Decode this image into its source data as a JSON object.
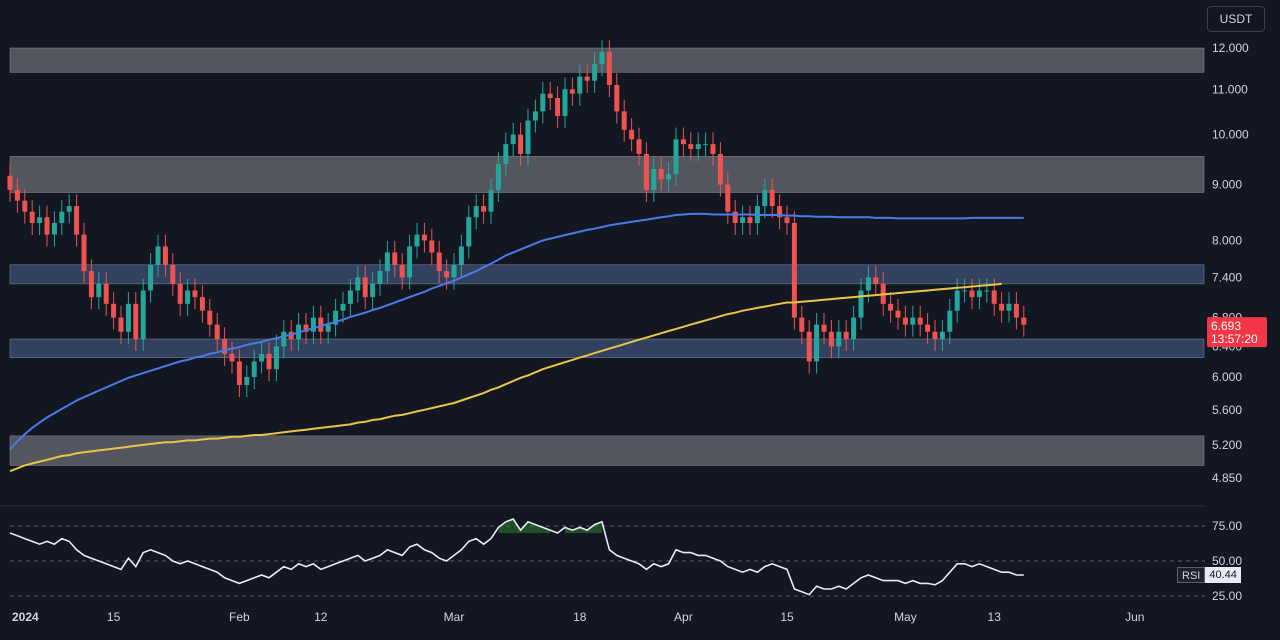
{
  "unit": "USDT",
  "chart_data": [
    {
      "type": "candlestick",
      "y_scale": "log",
      "ylim": [
        4.6,
        13.0
      ],
      "y_ticks": [
        "12.000",
        "11.000",
        "10.000",
        "9.000",
        "8.000",
        "7.400",
        "6.800",
        "6.400",
        "6.000",
        "5.600",
        "5.200",
        "4.850"
      ],
      "x_ticks": [
        {
          "label": "2024",
          "day": 0,
          "bold": true
        },
        {
          "label": "15",
          "day": 14
        },
        {
          "label": "Feb",
          "day": 31
        },
        {
          "label": "12",
          "day": 42
        },
        {
          "label": "Mar",
          "day": 60
        },
        {
          "label": "18",
          "day": 77
        },
        {
          "label": "Apr",
          "day": 91
        },
        {
          "label": "15",
          "day": 105
        },
        {
          "label": "May",
          "day": 121
        },
        {
          "label": "13",
          "day": 133
        },
        {
          "label": "Jun",
          "day": 152
        }
      ],
      "zones": [
        {
          "low": 11.4,
          "high": 12.0,
          "color": "#5f6168"
        },
        {
          "low": 8.85,
          "high": 9.55,
          "color": "#5f6168"
        },
        {
          "low": 7.3,
          "high": 7.6,
          "color": "#39496b"
        },
        {
          "low": 6.25,
          "high": 6.5,
          "color": "#39496b"
        },
        {
          "low": 4.98,
          "high": 5.3,
          "color": "#5f6168"
        }
      ],
      "closes": [
        8.9,
        8.7,
        8.5,
        8.3,
        8.4,
        8.1,
        8.3,
        8.5,
        8.6,
        8.1,
        7.5,
        7.1,
        7.3,
        7.0,
        6.8,
        6.6,
        7.0,
        6.5,
        7.2,
        7.6,
        7.9,
        7.6,
        7.3,
        7.0,
        7.2,
        7.1,
        6.9,
        6.7,
        6.5,
        6.3,
        6.2,
        5.9,
        6.0,
        6.2,
        6.3,
        6.1,
        6.4,
        6.6,
        6.5,
        6.7,
        6.6,
        6.8,
        6.6,
        6.7,
        6.9,
        7.0,
        7.2,
        7.4,
        7.1,
        7.3,
        7.5,
        7.8,
        7.6,
        7.4,
        7.9,
        8.1,
        8.0,
        7.8,
        7.5,
        7.4,
        7.6,
        7.9,
        8.4,
        8.6,
        8.5,
        8.9,
        9.4,
        9.8,
        10.0,
        9.6,
        10.3,
        10.5,
        10.9,
        10.8,
        10.4,
        11.0,
        10.9,
        11.3,
        11.2,
        11.6,
        11.9,
        11.1,
        10.5,
        10.1,
        9.9,
        9.6,
        8.9,
        9.3,
        9.1,
        9.2,
        9.9,
        9.8,
        9.7,
        9.8,
        9.8,
        9.6,
        9.0,
        8.5,
        8.3,
        8.4,
        8.3,
        8.6,
        8.9,
        8.6,
        8.4,
        8.3,
        6.8,
        6.6,
        6.2,
        6.7,
        6.6,
        6.4,
        6.6,
        6.5,
        6.8,
        7.2,
        7.4,
        7.3,
        7.0,
        6.9,
        6.8,
        6.7,
        6.8,
        6.7,
        6.6,
        6.5,
        6.6,
        6.9,
        7.2,
        7.2,
        7.1,
        7.2,
        7.2,
        7.0,
        6.9,
        7.0,
        6.8,
        6.7
      ],
      "price_badge": {
        "value": "6.693",
        "countdown": "13:57:20",
        "color": "#f23645"
      },
      "series": [
        {
          "name": "",
          "color": "#4a7be8",
          "values": [
            5.15,
            5.24,
            5.32,
            5.39,
            5.45,
            5.51,
            5.56,
            5.61,
            5.66,
            5.71,
            5.75,
            5.79,
            5.83,
            5.87,
            5.91,
            5.95,
            5.99,
            6.02,
            6.05,
            6.08,
            6.11,
            6.14,
            6.17,
            6.2,
            6.22,
            6.25,
            6.27,
            6.3,
            6.32,
            6.35,
            6.37,
            6.39,
            6.42,
            6.44,
            6.46,
            6.49,
            6.51,
            6.54,
            6.56,
            6.59,
            6.62,
            6.65,
            6.68,
            6.71,
            6.74,
            6.77,
            6.81,
            6.84,
            6.87,
            6.91,
            6.94,
            6.98,
            7.02,
            7.06,
            7.1,
            7.14,
            7.18,
            7.23,
            7.27,
            7.31,
            7.35,
            7.4,
            7.45,
            7.5,
            7.56,
            7.62,
            7.68,
            7.75,
            7.8,
            7.85,
            7.9,
            7.95,
            8.0,
            8.03,
            8.06,
            8.09,
            8.12,
            8.15,
            8.18,
            8.2,
            8.23,
            8.26,
            8.28,
            8.3,
            8.32,
            8.34,
            8.36,
            8.38,
            8.4,
            8.42,
            8.44,
            8.45,
            8.46,
            8.46,
            8.46,
            8.45,
            8.45,
            8.45,
            8.45,
            8.45,
            8.45,
            8.44,
            8.44,
            8.44,
            8.44,
            8.43,
            8.43,
            8.42,
            8.42,
            8.41,
            8.41,
            8.41,
            8.4,
            8.4,
            8.4,
            8.4,
            8.4,
            8.39,
            8.39,
            8.39,
            8.38,
            8.38,
            8.38,
            8.38,
            8.38,
            8.38,
            8.38,
            8.38,
            8.38,
            8.38,
            8.39,
            8.39,
            8.39,
            8.39,
            8.39,
            8.39,
            8.39,
            8.39
          ]
        },
        {
          "name": "",
          "color": "#e8c547",
          "values": [
            4.92,
            4.95,
            4.98,
            5.0,
            5.02,
            5.04,
            5.06,
            5.08,
            5.09,
            5.11,
            5.12,
            5.13,
            5.14,
            5.15,
            5.16,
            5.17,
            5.18,
            5.19,
            5.2,
            5.21,
            5.22,
            5.23,
            5.23,
            5.24,
            5.25,
            5.25,
            5.26,
            5.27,
            5.27,
            5.28,
            5.29,
            5.29,
            5.3,
            5.31,
            5.31,
            5.32,
            5.33,
            5.34,
            5.35,
            5.36,
            5.37,
            5.38,
            5.39,
            5.4,
            5.41,
            5.42,
            5.43,
            5.45,
            5.46,
            5.48,
            5.49,
            5.51,
            5.53,
            5.54,
            5.56,
            5.58,
            5.6,
            5.62,
            5.64,
            5.66,
            5.68,
            5.71,
            5.74,
            5.77,
            5.8,
            5.84,
            5.87,
            5.91,
            5.95,
            5.99,
            6.02,
            6.06,
            6.1,
            6.13,
            6.16,
            6.19,
            6.22,
            6.25,
            6.28,
            6.31,
            6.34,
            6.37,
            6.4,
            6.43,
            6.46,
            6.49,
            6.52,
            6.55,
            6.58,
            6.61,
            6.64,
            6.67,
            6.7,
            6.73,
            6.76,
            6.79,
            6.82,
            6.85,
            6.87,
            6.9,
            6.92,
            6.94,
            6.96,
            6.98,
            7.0,
            7.02,
            7.02,
            7.03,
            7.04,
            7.05,
            7.06,
            7.07,
            7.08,
            7.09,
            7.1,
            7.11,
            7.12,
            7.13,
            7.14,
            7.15,
            7.16,
            7.17,
            7.18,
            7.19,
            7.2,
            7.21,
            7.22,
            7.23,
            7.24,
            7.25,
            7.26,
            7.27,
            7.28,
            7.29,
            7.3
          ]
        }
      ]
    },
    {
      "type": "line",
      "name": "RSI",
      "ylim": [
        20,
        85
      ],
      "y_ticks": [
        "75.00",
        "50.00",
        "25.00"
      ],
      "guides": [
        75,
        50,
        25
      ],
      "overbought": 70,
      "current": "40.44",
      "values": [
        70,
        68,
        66,
        64,
        62,
        64,
        62,
        66,
        64,
        58,
        54,
        52,
        50,
        48,
        46,
        44,
        52,
        46,
        56,
        58,
        56,
        54,
        50,
        48,
        50,
        48,
        46,
        44,
        42,
        38,
        36,
        34,
        36,
        38,
        40,
        38,
        42,
        46,
        44,
        48,
        46,
        48,
        44,
        46,
        48,
        50,
        52,
        54,
        50,
        52,
        54,
        58,
        56,
        54,
        60,
        62,
        58,
        56,
        52,
        50,
        54,
        58,
        64,
        66,
        62,
        66,
        74,
        78,
        80,
        72,
        78,
        76,
        74,
        72,
        70,
        74,
        72,
        74,
        72,
        76,
        78,
        58,
        54,
        52,
        50,
        48,
        44,
        48,
        46,
        48,
        58,
        56,
        56,
        54,
        54,
        52,
        50,
        46,
        44,
        42,
        44,
        42,
        46,
        48,
        46,
        44,
        30,
        28,
        26,
        32,
        30,
        30,
        32,
        30,
        34,
        38,
        40,
        38,
        36,
        36,
        36,
        34,
        36,
        34,
        34,
        33,
        36,
        42,
        48,
        48,
        46,
        48,
        46,
        44,
        42,
        42,
        40,
        40
      ]
    }
  ]
}
